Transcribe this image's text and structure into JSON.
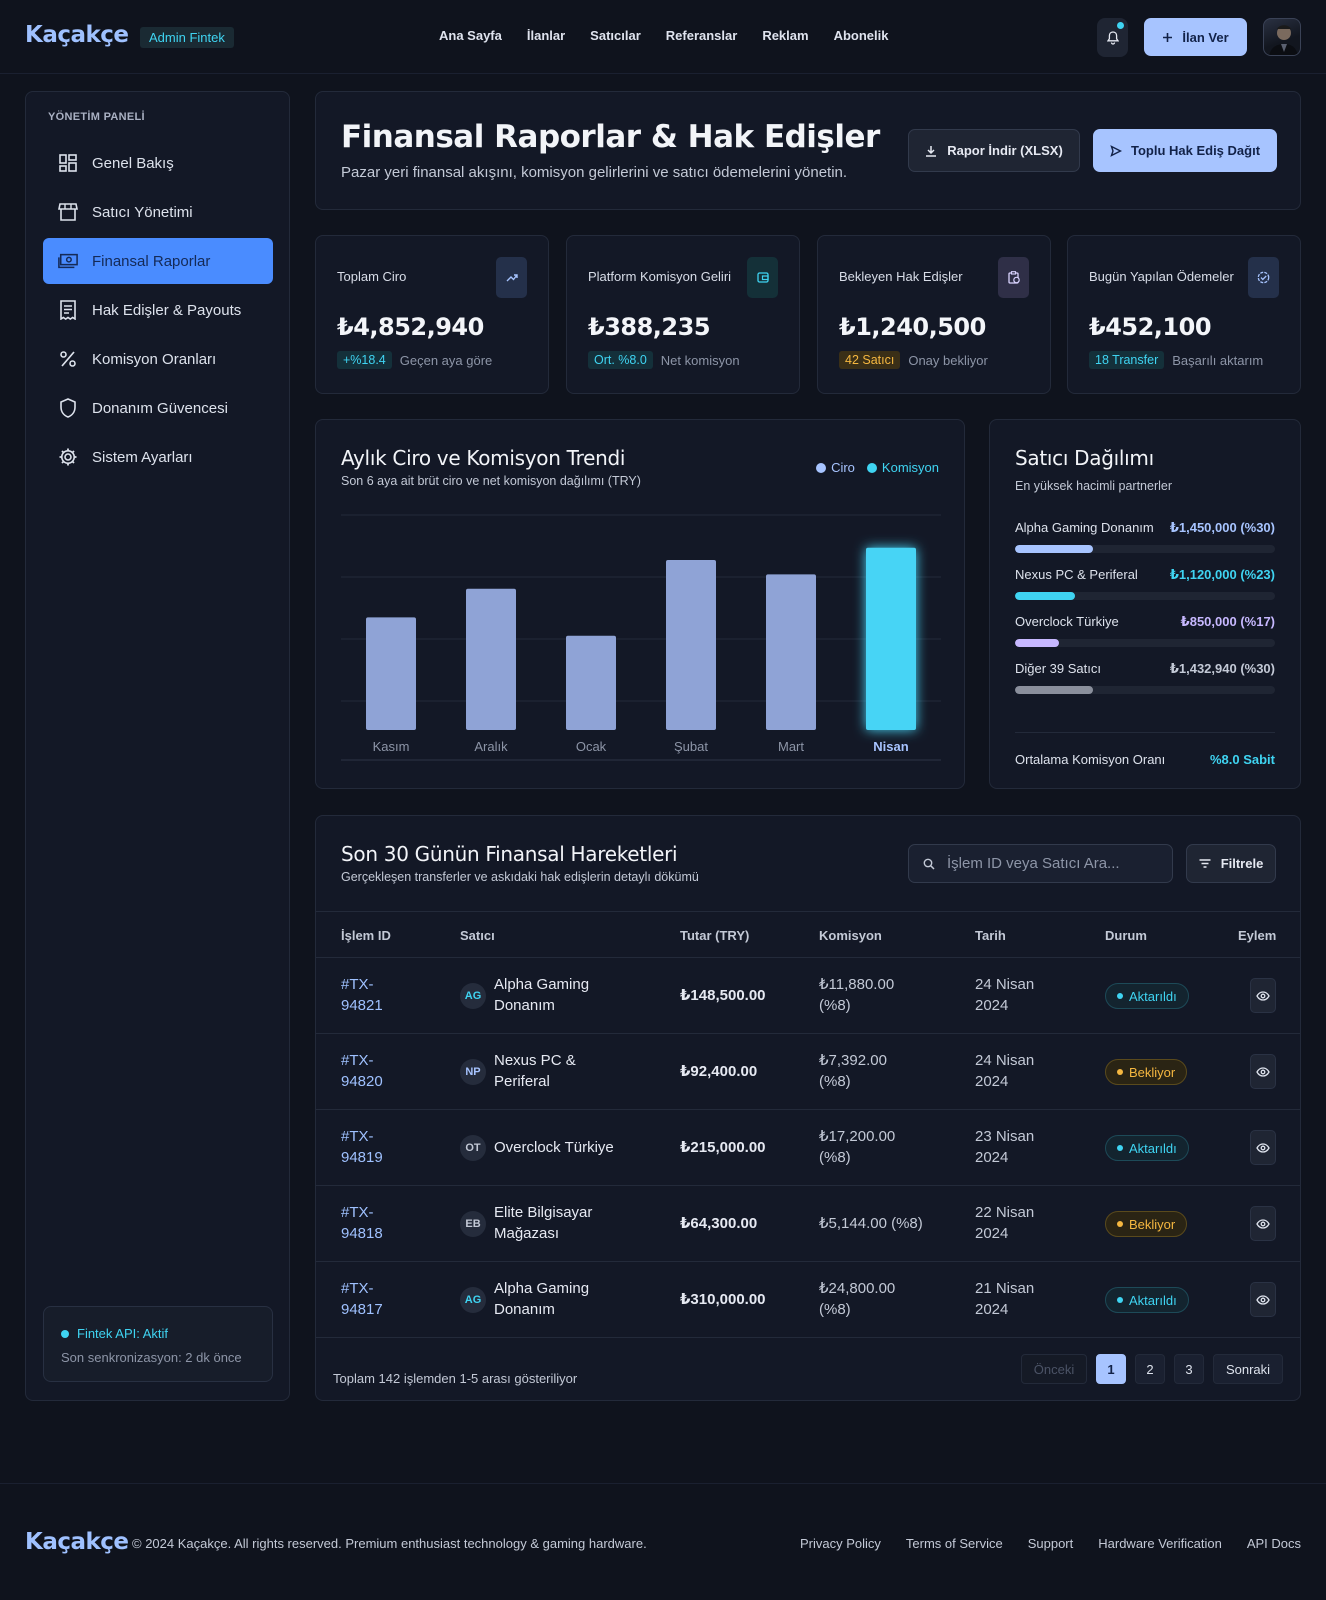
{
  "header": {
    "logo": "Kaçakçe",
    "badge": "Admin Fintek",
    "nav": [
      "Ana Sayfa",
      "İlanlar",
      "Satıcılar",
      "Referanslar",
      "Reklam",
      "Abonelik"
    ],
    "cta": "İlan Ver"
  },
  "sidebar": {
    "title": "YÖNETİM PANELİ",
    "items": [
      {
        "label": "Genel Bakış",
        "icon": "dashboard-icon"
      },
      {
        "label": "Satıcı Yönetimi",
        "icon": "store-icon"
      },
      {
        "label": "Finansal Raporlar",
        "icon": "money-icon",
        "active": true
      },
      {
        "label": "Hak Edişler & Payouts",
        "icon": "receipt-icon"
      },
      {
        "label": "Komisyon Oranları",
        "icon": "percent-icon"
      },
      {
        "label": "Donanım Güvencesi",
        "icon": "shield-icon"
      },
      {
        "label": "Sistem Ayarları",
        "icon": "gear-icon"
      }
    ],
    "api_status": "Fintek API: Aktif",
    "api_sync": "Son senkronizasyon: 2 dk önce"
  },
  "page": {
    "title": "Finansal Raporlar & Hak Edişler",
    "subtitle": "Pazar yeri finansal akışını, komisyon gelirlerini ve satıcı ödemelerini yönetin.",
    "download_btn": "Rapor İndir (XLSX)",
    "distribute_btn": "Toplu Hak Ediş Dağıt"
  },
  "stats": [
    {
      "label": "Toplam Ciro",
      "value": "₺4,852,940",
      "pill": "+%18.4",
      "note": "Geçen aya göre",
      "icon": "trend-up-icon",
      "color": "#3fd4f2"
    },
    {
      "label": "Platform Komisyon Geliri",
      "value": "₺388,235",
      "pill": "Ort. %8.0",
      "note": "Net komisyon",
      "icon": "wallet-icon",
      "color": "#3fd4f2"
    },
    {
      "label": "Bekleyen Hak Edişler",
      "value": "₺1,240,500",
      "pill": "42 Satıcı",
      "note": "Onay bekliyor",
      "icon": "clipboard-clock-icon",
      "color": "#f5b740"
    },
    {
      "label": "Bugün Yapılan Ödemeler",
      "value": "₺452,100",
      "pill": "18 Transfer",
      "note": "Başarılı aktarım",
      "icon": "verified-icon",
      "color": "#3fd4f2"
    }
  ],
  "chart_panel": {
    "title": "Aylık Ciro ve Komisyon Trendi",
    "subtitle": "Son 6 aya ait brüt ciro ve net komisyon dağılımı (TRY)",
    "legend": [
      {
        "label": "Ciro",
        "color": "#a7c4ff"
      },
      {
        "label": "Komisyon",
        "color": "#3fd4f2"
      }
    ]
  },
  "chart_data": {
    "type": "bar",
    "categories": [
      "Kasım",
      "Aralık",
      "Ocak",
      "Şubat",
      "Mart",
      "Nisan"
    ],
    "values": [
      55,
      69,
      46,
      83,
      76,
      89
    ],
    "ylim": [
      0,
      105
    ],
    "highlight_index": 5,
    "colors": {
      "bar": "#8fa3d6",
      "highlight": "#47d4f5"
    },
    "grid": true
  },
  "distribution": {
    "title": "Satıcı Dağılımı",
    "subtitle": "En yüksek hacimli partnerler",
    "rows": [
      {
        "name": "Alpha Gaming Donanım",
        "value": "₺1,450,000 (%30)",
        "share": 30,
        "color": "#a7c4ff"
      },
      {
        "name": "Nexus PC & Periferal",
        "value": "₺1,120,000 (%23)",
        "share": 23,
        "color": "#3fd4f2"
      },
      {
        "name": "Overclock Türkiye",
        "value": "₺850,000 (%17)",
        "share": 17,
        "color": "#c7b8ff"
      },
      {
        "name": "Diğer 39 Satıcı",
        "value": "₺1,432,940 (%30)",
        "share": 30,
        "color": "#8a8f9c"
      }
    ],
    "avg_label": "Ortalama Komisyon Oranı",
    "avg_value": "%8.0 Sabit"
  },
  "transactions": {
    "title": "Son 30 Günün Finansal Hareketleri",
    "subtitle": "Gerçekleşen transferler ve askıdaki hak edişlerin detaylı dökümü",
    "search_placeholder": "İşlem ID veya Satıcı Ara...",
    "filter_btn": "Filtrele",
    "columns": [
      "İşlem ID",
      "Satıcı",
      "Tutar (TRY)",
      "Komisyon",
      "Tarih",
      "Durum",
      "Eylem"
    ],
    "rows": [
      {
        "id1": "#TX-",
        "id2": "94821",
        "initials": "AG",
        "v1": "Alpha Gaming",
        "v2": "Donanım",
        "amount": "₺148,500.00",
        "c1": "₺11,880.00",
        "c2": "(%8)",
        "d1": "24 Nisan",
        "d2": "2024",
        "status": "Aktarıldı",
        "kind": "ok"
      },
      {
        "id1": "#TX-",
        "id2": "94820",
        "initials": "NP",
        "v1": "Nexus PC &",
        "v2": "Periferal",
        "amount": "₺92,400.00",
        "c1": "₺7,392.00",
        "c2": "(%8)",
        "d1": "24 Nisan",
        "d2": "2024",
        "status": "Bekliyor",
        "kind": "wait"
      },
      {
        "id1": "#TX-",
        "id2": "94819",
        "initials": "OT",
        "v1": "Overclock Türkiye",
        "v2": "",
        "amount": "₺215,000.00",
        "c1": "₺17,200.00",
        "c2": "(%8)",
        "d1": "23 Nisan",
        "d2": "2024",
        "status": "Aktarıldı",
        "kind": "ok"
      },
      {
        "id1": "#TX-",
        "id2": "94818",
        "initials": "EB",
        "v1": "Elite Bilgisayar",
        "v2": "Mağazası",
        "amount": "₺64,300.00",
        "c1": "₺5,144.00 (%8)",
        "c2": "",
        "d1": "22 Nisan",
        "d2": "2024",
        "status": "Bekliyor",
        "kind": "wait"
      },
      {
        "id1": "#TX-",
        "id2": "94817",
        "initials": "AG",
        "v1": "Alpha Gaming",
        "v2": "Donanım",
        "amount": "₺310,000.00",
        "c1": "₺24,800.00",
        "c2": "(%8)",
        "d1": "21 Nisan",
        "d2": "2024",
        "status": "Aktarıldı",
        "kind": "ok"
      }
    ],
    "footer": "Toplam 142 işlemden 1-5 arası gösteriliyor",
    "pager": {
      "prev": "Önceki",
      "pages": [
        "1",
        "2",
        "3"
      ],
      "next": "Sonraki",
      "current": "1"
    }
  },
  "footer": {
    "logo": "Kaçakçe",
    "copyright": "© 2024 Kaçakçe. All rights reserved. Premium enthusiast technology & gaming hardware.",
    "links": [
      "Privacy Policy",
      "Terms of Service",
      "Support",
      "Hardware Verification",
      "API Docs"
    ]
  }
}
